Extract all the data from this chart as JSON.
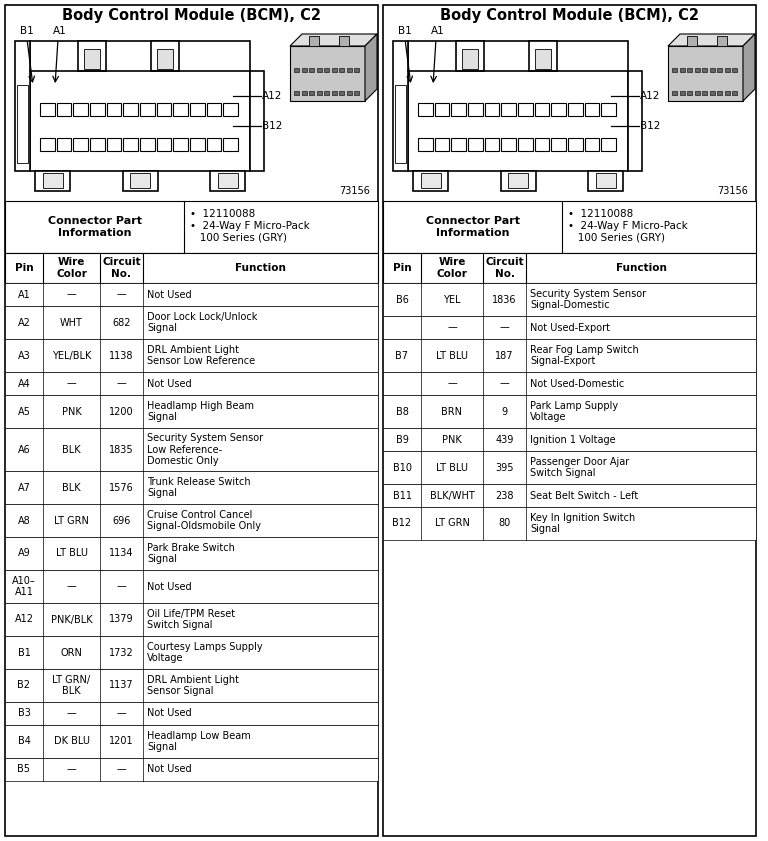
{
  "title": "Body Control Module (BCM), C2",
  "bg_color": "#ffffff",
  "left_table": {
    "headers": [
      "Pin",
      "Wire\nColor",
      "Circuit\nNo.",
      "Function"
    ],
    "rows": [
      [
        "A1",
        "—",
        "—",
        "Not Used"
      ],
      [
        "A2",
        "WHT",
        "682",
        "Door Lock Lock/Unlock\nSignal"
      ],
      [
        "A3",
        "YEL/BLK",
        "1138",
        "DRL Ambient Light\nSensor Low Reference"
      ],
      [
        "A4",
        "—",
        "—",
        "Not Used"
      ],
      [
        "A5",
        "PNK",
        "1200",
        "Headlamp High Beam\nSignal"
      ],
      [
        "A6",
        "BLK",
        "1835",
        "Security System Sensor\nLow Reference-\nDomestic Only"
      ],
      [
        "A7",
        "BLK",
        "1576",
        "Trunk Release Switch\nSignal"
      ],
      [
        "A8",
        "LT GRN",
        "696",
        "Cruise Control Cancel\nSignal-Oldsmobile Only"
      ],
      [
        "A9",
        "LT BLU",
        "1134",
        "Park Brake Switch\nSignal"
      ],
      [
        "A10–\nA11",
        "—",
        "—",
        "Not Used"
      ],
      [
        "A12",
        "PNK/BLK",
        "1379",
        "Oil Life/TPM Reset\nSwitch Signal"
      ],
      [
        "B1",
        "ORN",
        "1732",
        "Courtesy Lamps Supply\nVoltage"
      ],
      [
        "B2",
        "LT GRN/\nBLK",
        "1137",
        "DRL Ambient Light\nSensor Signal"
      ],
      [
        "B3",
        "—",
        "—",
        "Not Used"
      ],
      [
        "B4",
        "DK BLU",
        "1201",
        "Headlamp Low Beam\nSignal"
      ],
      [
        "B5",
        "—",
        "—",
        "Not Used"
      ]
    ]
  },
  "right_table": {
    "headers": [
      "Pin",
      "Wire\nColor",
      "Circuit\nNo.",
      "Function"
    ],
    "rows": [
      [
        "B6",
        "YEL",
        "1836",
        "Security System Sensor\nSignal-Domestic"
      ],
      [
        "",
        "—",
        "—",
        "Not Used-Export"
      ],
      [
        "B7",
        "LT BLU",
        "187",
        "Rear Fog Lamp Switch\nSignal-Export"
      ],
      [
        "",
        "—",
        "—",
        "Not Used-Domestic"
      ],
      [
        "B8",
        "BRN",
        "9",
        "Park Lamp Supply\nVoltage"
      ],
      [
        "B9",
        "PNK",
        "439",
        "Ignition 1 Voltage"
      ],
      [
        "B10",
        "LT BLU",
        "395",
        "Passenger Door Ajar\nSwitch Signal"
      ],
      [
        "B11",
        "BLK/WHT",
        "238",
        "Seat Belt Switch - Left"
      ],
      [
        "B12",
        "LT GRN",
        "80",
        "Key In Ignition Switch\nSignal"
      ]
    ]
  }
}
